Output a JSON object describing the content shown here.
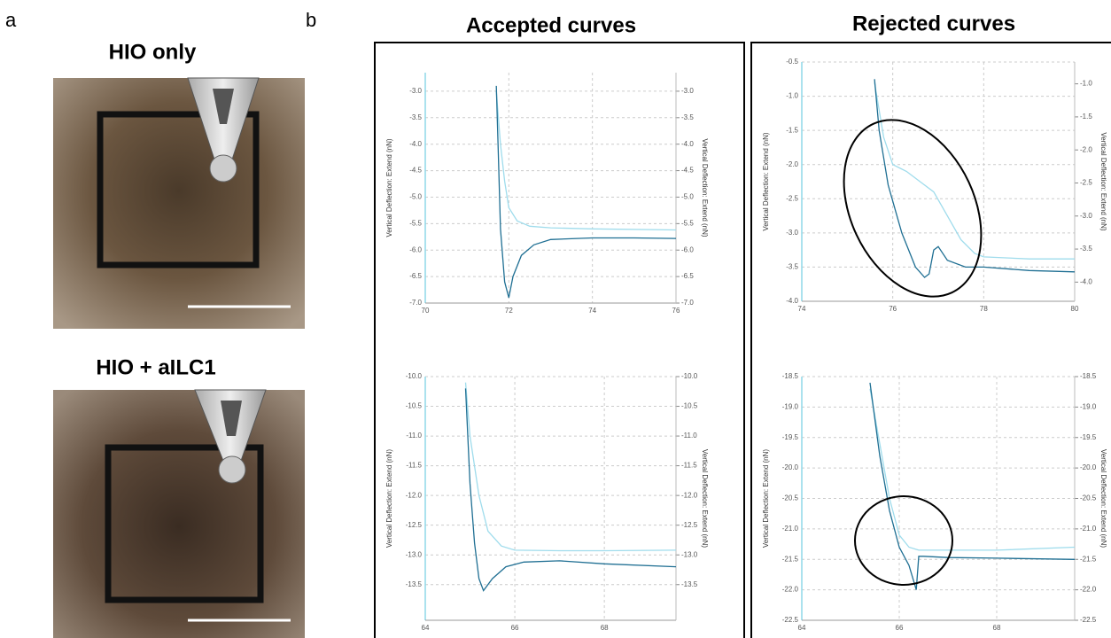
{
  "panel_labels": [
    "a",
    "b"
  ],
  "images": [
    {
      "title": "HIO only"
    },
    {
      "title": "HIO + aILC1"
    }
  ],
  "column_titles": [
    "Accepted curves",
    "Rejected curves"
  ],
  "chart_data": [
    {
      "type": "line",
      "y_label": "Vertical Deflection: Extend (nN)",
      "y2_label": "Vertical Deflection: Extend (nN)",
      "xlim": [
        70,
        76
      ],
      "xticks": [
        70,
        72,
        74,
        76
      ],
      "ylim": [
        -7,
        -2.65
      ],
      "yticks": [
        {
          "value": -3,
          "label": "-3.0"
        },
        {
          "value": -3.5,
          "label": "-3.5"
        },
        {
          "value": -4,
          "label": "-4.0"
        },
        {
          "value": -4.5,
          "label": "-4.5"
        },
        {
          "value": -5,
          "label": "-5.0"
        },
        {
          "value": -5.5,
          "label": "-5.5"
        },
        {
          "value": -6,
          "label": "-6.0"
        },
        {
          "value": -6.5,
          "label": "-6.5"
        },
        {
          "value": -7,
          "label": "-7.0"
        }
      ],
      "y2lim": [
        -7,
        -2.65
      ],
      "y2ticks": [
        {
          "value": -3,
          "label": "-3.0"
        },
        {
          "value": -3.5,
          "label": "-3.5"
        },
        {
          "value": -4,
          "label": "-4.0"
        },
        {
          "value": -4.5,
          "label": "-4.5"
        },
        {
          "value": -5,
          "label": "-5.0"
        },
        {
          "value": -5.5,
          "label": "-5.5"
        },
        {
          "value": -6,
          "label": "-6.0"
        },
        {
          "value": -6.5,
          "label": "-6.5"
        },
        {
          "value": -7,
          "label": "-7.0"
        }
      ],
      "grid": true,
      "series": [
        {
          "color": "#9fdcec",
          "x": [
            71.7,
            71.8,
            71.9,
            72.0,
            72.2,
            72.5,
            73,
            74,
            76
          ],
          "values": [
            -3.0,
            -4.0,
            -4.7,
            -5.2,
            -5.45,
            -5.55,
            -5.58,
            -5.6,
            -5.62
          ]
        },
        {
          "color": "#1f6f93",
          "x": [
            71.7,
            71.75,
            71.8,
            71.9,
            72.0,
            72.1,
            72.3,
            72.6,
            73,
            74,
            75,
            76
          ],
          "values": [
            -2.9,
            -4.2,
            -5.6,
            -6.6,
            -6.9,
            -6.5,
            -6.1,
            -5.9,
            -5.8,
            -5.77,
            -5.77,
            -5.78
          ]
        }
      ]
    },
    {
      "type": "line",
      "y_label": "Vertical Deflection: Extend (nN)",
      "y2_label": "Vertical Deflection: Extend (nN)",
      "xlim": [
        74,
        80
      ],
      "xticks": [
        74,
        76,
        78,
        80
      ],
      "ylim": [
        -4,
        -0.5
      ],
      "yticks": [
        -0.5,
        {
          "value": -1,
          "label": "-1.0"
        },
        -1.5,
        {
          "value": -2,
          "label": "-2.0"
        },
        -2.5,
        {
          "value": -3,
          "label": "-3.0"
        },
        -3.5,
        {
          "value": -4,
          "label": "-4.0"
        }
      ],
      "y2lim": [
        -4.29,
        -0.67
      ],
      "y2ticks": [
        {
          "value": -1,
          "label": "-1.0"
        },
        -1.5,
        {
          "value": -2,
          "label": "-2.0"
        },
        -2.5,
        {
          "value": -3,
          "label": "-3.0"
        },
        -3.5,
        {
          "value": -4,
          "label": "-4.0"
        }
      ],
      "grid": true,
      "series": [
        {
          "color": "#9fdcec",
          "x": [
            75.6,
            75.8,
            76.0,
            76.3,
            76.6,
            76.9,
            77.2,
            77.5,
            77.8,
            78,
            79,
            80
          ],
          "values": [
            -0.8,
            -1.6,
            -2.0,
            -2.1,
            -2.25,
            -2.4,
            -2.75,
            -3.1,
            -3.3,
            -3.35,
            -3.38,
            -3.38
          ]
        },
        {
          "color": "#1f6f93",
          "x": [
            75.6,
            75.7,
            75.9,
            76.2,
            76.5,
            76.7,
            76.8,
            76.9,
            77.0,
            77.2,
            77.6,
            78,
            79,
            80
          ],
          "values": [
            -0.75,
            -1.5,
            -2.3,
            -3.0,
            -3.5,
            -3.65,
            -3.6,
            -3.25,
            -3.2,
            -3.4,
            -3.5,
            -3.5,
            -3.55,
            -3.57
          ]
        }
      ]
    },
    {
      "type": "line",
      "y_label": "Vertical Deflection: Extend (nN)",
      "y2_label": "Vertical Deflection: Extend (nN)",
      "xlim": [
        64,
        69.6
      ],
      "xticks": [
        64,
        66,
        68
      ],
      "ylim": [
        -14.1,
        -10
      ],
      "yticks": [
        {
          "value": -10,
          "label": "-10.0"
        },
        -10.5,
        {
          "value": -11,
          "label": "-11.0"
        },
        -11.5,
        {
          "value": -12,
          "label": "-12.0"
        },
        -12.5,
        {
          "value": -13,
          "label": "-13.0"
        },
        -13.5
      ],
      "y2lim": [
        -14.1,
        -10
      ],
      "y2ticks": [
        {
          "value": -10,
          "label": "-10.0"
        },
        -10.5,
        {
          "value": -11,
          "label": "-11.0"
        },
        -11.5,
        {
          "value": -12,
          "label": "-12.0"
        },
        -12.5,
        {
          "value": -13,
          "label": "-13.0"
        },
        -13.5
      ],
      "grid": true,
      "series": [
        {
          "color": "#9fdcec",
          "x": [
            64.9,
            65.0,
            65.2,
            65.4,
            65.7,
            66,
            67,
            68,
            69.6
          ],
          "values": [
            -10.1,
            -11.0,
            -12.0,
            -12.6,
            -12.85,
            -12.92,
            -12.93,
            -12.93,
            -12.92
          ]
        },
        {
          "color": "#1f6f93",
          "x": [
            64.9,
            65.0,
            65.1,
            65.2,
            65.3,
            65.5,
            65.8,
            66.2,
            67,
            68,
            69.6
          ],
          "values": [
            -10.2,
            -11.8,
            -12.8,
            -13.4,
            -13.6,
            -13.4,
            -13.2,
            -13.12,
            -13.1,
            -13.15,
            -13.2
          ]
        }
      ]
    },
    {
      "type": "line",
      "y_label": "Vertical Deflection: Extend (nN)",
      "y2_label": "Vertical Deflection: Extend (nN)",
      "xlim": [
        64,
        69.6
      ],
      "xticks": [
        64,
        66,
        68
      ],
      "ylim": [
        -22.5,
        -18.5
      ],
      "yticks": [
        -18.5,
        {
          "value": -19,
          "label": "-19.0"
        },
        -19.5,
        {
          "value": -20,
          "label": "-20.0"
        },
        -20.5,
        {
          "value": -21,
          "label": "-21.0"
        },
        -21.5,
        {
          "value": -22,
          "label": "-22.0"
        },
        -22.5
      ],
      "y2lim": [
        -22.5,
        -18.5
      ],
      "y2ticks": [
        -18.5,
        {
          "value": -19,
          "label": "-19.0"
        },
        -19.5,
        {
          "value": -20,
          "label": "-20.0"
        },
        -20.5,
        {
          "value": -21,
          "label": "-21.0"
        },
        -21.5,
        {
          "value": -22,
          "label": "-22.0"
        },
        -22.5
      ],
      "grid": true,
      "series": [
        {
          "color": "#9fdcec",
          "x": [
            65.4,
            65.6,
            65.8,
            66.0,
            66.2,
            66.4,
            67,
            68,
            69.6
          ],
          "values": [
            -18.7,
            -19.6,
            -20.5,
            -21.1,
            -21.3,
            -21.35,
            -21.35,
            -21.35,
            -21.3
          ]
        },
        {
          "color": "#1f6f93",
          "x": [
            65.4,
            65.6,
            65.8,
            66.0,
            66.2,
            66.35,
            66.4,
            66.5,
            67,
            68,
            69.6
          ],
          "values": [
            -18.6,
            -19.8,
            -20.7,
            -21.3,
            -21.6,
            -22.0,
            -21.45,
            -21.45,
            -21.47,
            -21.48,
            -21.5
          ]
        }
      ]
    }
  ]
}
